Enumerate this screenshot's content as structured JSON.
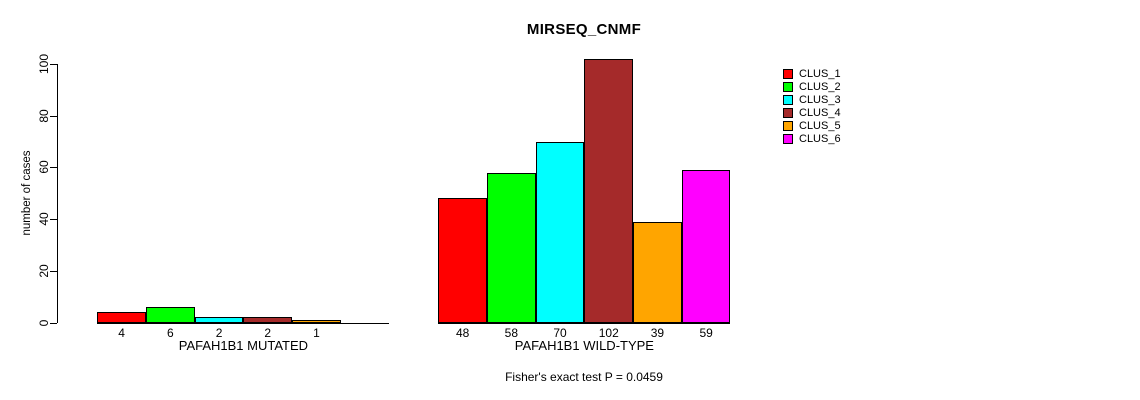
{
  "chart_data": {
    "type": "bar",
    "title": "MIRSEQ_CNMF",
    "ylabel": "number of cases",
    "ylim": [
      0,
      100
    ],
    "yticks": [
      0,
      20,
      40,
      60,
      80,
      100
    ],
    "grid": false,
    "legend_position": "right-outside",
    "series_names": [
      "CLUS_1",
      "CLUS_2",
      "CLUS_3",
      "CLUS_4",
      "CLUS_5",
      "CLUS_6"
    ],
    "series_colors": [
      "#FF0000",
      "#00FF00",
      "#00FFFF",
      "#A52A2A",
      "#FFA500",
      "#FF00FF"
    ],
    "groups": [
      {
        "label": "PAFAH1B1 MUTATED",
        "values": [
          4,
          6,
          2,
          2,
          1,
          0
        ],
        "bar_labels": [
          "4",
          "6",
          "2",
          "2",
          "1",
          ""
        ]
      },
      {
        "label": "PAFAH1B1 WILD-TYPE",
        "values": [
          48,
          58,
          70,
          102,
          39,
          59
        ],
        "bar_labels": [
          "48",
          "58",
          "70",
          "102",
          "39",
          "59"
        ]
      }
    ],
    "annotation": "Fisher's exact test P = 0.0459",
    "axis_color": "#000000",
    "background_color": "#FFFFFF"
  }
}
